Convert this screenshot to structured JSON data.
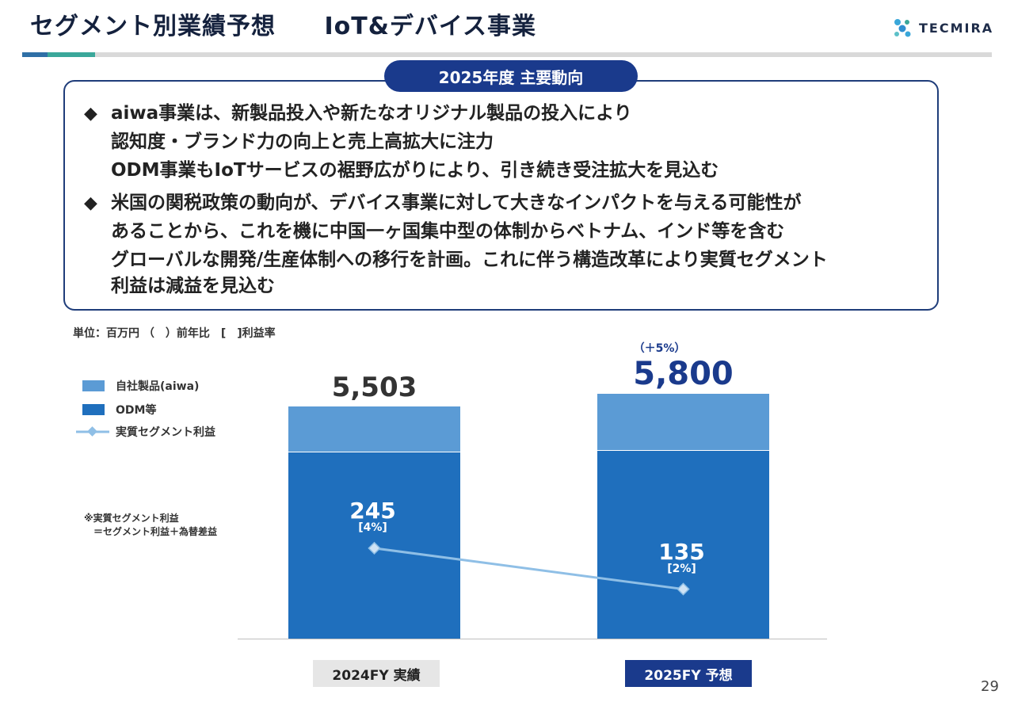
{
  "header": {
    "title": "セグメント別業績予想",
    "subtitle": "IoT&デバイス事業",
    "logo_text": "TECMIRA"
  },
  "summary": {
    "label": "2025年度 主要動向",
    "bullet1_lines": [
      "aiwa事業は、新製品投入や新たなオリジナル製品の投入により",
      "認知度・ブランド力の向上と売上高拡大に注力",
      "ODM事業もIoTサービスの裾野広がりにより、引き続き受注拡大を見込む"
    ],
    "bullet2_lines": [
      "米国の関税政策の動向が、デバイス事業に対して大きなインパクトを与える可能性が",
      "あることから、これを機に中国一ヶ国集中型の体制からベトナム、インド等を含む",
      "グローバルな開発/生産体制への移行を計画。これに伴う構造改革により実質セグメント",
      "利益は減益を見込む"
    ],
    "bullet_glyph": "◆"
  },
  "unit_note": "単位：百万円 （　）前年比　[　]利益率",
  "note": {
    "line1": "※実質セグメント利益",
    "line2": "　＝セグメント利益＋為替差益"
  },
  "page_number": "29",
  "colors": {
    "aiwa": "#5b9bd5",
    "odm": "#1f6fbd",
    "profit_line": "#8fbfe6",
    "accent": "#1a3a8c"
  },
  "chart_data": {
    "type": "bar",
    "stacked": true,
    "categories": [
      "2024FY 実績",
      "2025FY 予想"
    ],
    "series": [
      {
        "name": "自社製品(aiwa)",
        "values": [
          1100,
          1350
        ]
      },
      {
        "name": "ODM等",
        "values": [
          4403,
          4450
        ]
      }
    ],
    "totals": [
      "5,503",
      "5,800"
    ],
    "total_values": [
      5503,
      5800
    ],
    "growth_labels": [
      "",
      "（＋5%）"
    ],
    "line_series": {
      "name": "実質セグメント利益",
      "values": [
        245,
        135
      ],
      "labels": [
        "245",
        "135"
      ],
      "margins": [
        "[4%]",
        "[2%]"
      ]
    },
    "legend": [
      "自社製品(aiwa)",
      "ODM等",
      "実質セグメント利益"
    ]
  }
}
